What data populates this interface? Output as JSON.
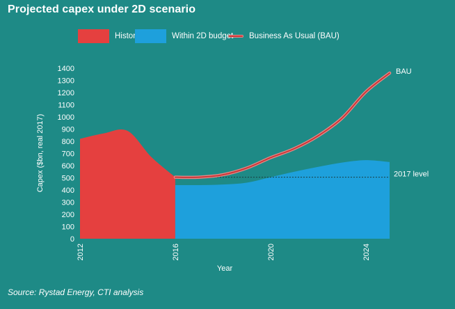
{
  "header": {
    "title": "Projected capex under 2D scenario"
  },
  "legend": {
    "historic": "Historic",
    "within": "Within 2D budget",
    "bau": "Business As Usual (BAU)"
  },
  "axes": {
    "ylabel": "Capex ($bn, real 2017)",
    "xlabel": "Year"
  },
  "footer": {
    "source": "Source: Rystad Energy, CTI analysis"
  },
  "colors": {
    "background": "#1e8a86",
    "historic": "#e5403f",
    "within": "#1ea0dc",
    "bau_line": "#c9383a",
    "bau_outline": "#e88a88"
  },
  "chart_data": {
    "type": "area",
    "xlabel": "Year",
    "ylabel": "Capex ($bn, real 2017)",
    "xlim": [
      2012,
      2025
    ],
    "ylim": [
      0,
      1400
    ],
    "yticks": [
      0,
      100,
      200,
      300,
      400,
      500,
      600,
      700,
      800,
      900,
      1000,
      1100,
      1200,
      1300,
      1400
    ],
    "xticks": [
      2012,
      2016,
      2020,
      2024
    ],
    "series": [
      {
        "name": "Historic",
        "kind": "area",
        "x": [
          2012,
          2013,
          2014,
          2015,
          2016
        ],
        "values": [
          820,
          865,
          885,
          670,
          505
        ]
      },
      {
        "name": "Within 2D budget",
        "kind": "area",
        "x": [
          2016,
          2017,
          2018,
          2019,
          2020,
          2021,
          2022,
          2023,
          2024,
          2025
        ],
        "values": [
          440,
          440,
          445,
          460,
          505,
          550,
          590,
          625,
          645,
          630
        ]
      },
      {
        "name": "Business As Usual (BAU)",
        "kind": "line",
        "x": [
          2016,
          2017,
          2018,
          2019,
          2020,
          2021,
          2022,
          2023,
          2024,
          2025
        ],
        "values": [
          505,
          505,
          525,
          580,
          665,
          740,
          845,
          990,
          1205,
          1360
        ]
      }
    ],
    "reference_line": {
      "label": "2017 level",
      "y": 505,
      "x_from": 2016,
      "x_to": 2025
    },
    "annotations": [
      {
        "text": "BAU",
        "x": 2025,
        "y": 1360
      }
    ],
    "grid": false,
    "legend_position": "top"
  }
}
